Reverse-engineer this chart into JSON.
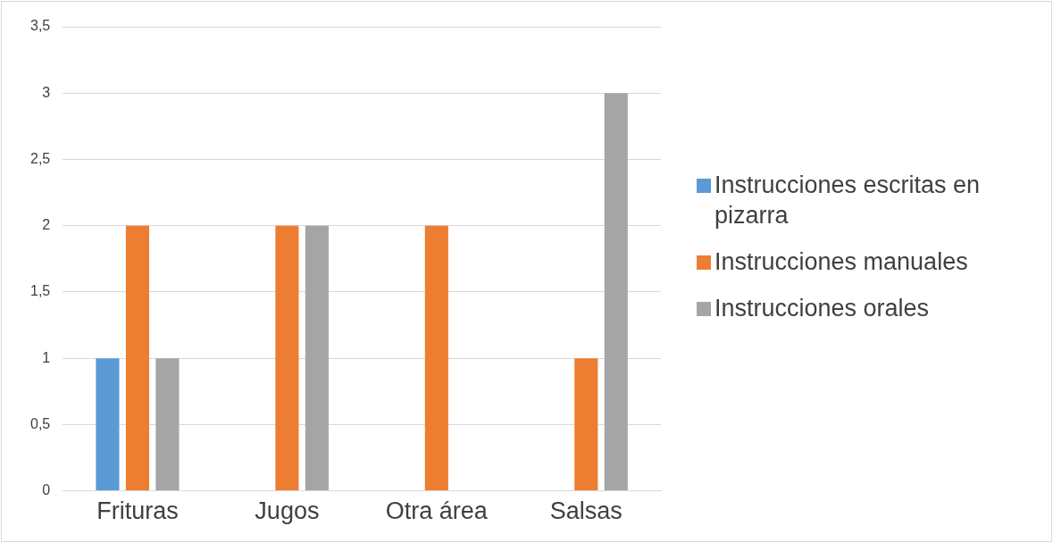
{
  "chart_data": {
    "type": "bar",
    "categories": [
      "Frituras",
      "Jugos",
      "Otra área",
      "Salsas"
    ],
    "series": [
      {
        "name": "Instrucciones escritas en pizarra",
        "color": "#5b9bd5",
        "values": [
          1,
          0,
          0,
          0
        ]
      },
      {
        "name": "Instrucciones manuales",
        "color": "#ed7d31",
        "values": [
          2,
          2,
          2,
          1
        ]
      },
      {
        "name": "Instrucciones orales",
        "color": "#a5a5a5",
        "values": [
          1,
          2,
          0,
          3
        ]
      }
    ],
    "ylim": [
      0,
      3.5
    ],
    "yticks": [
      0,
      {
        "value": 0.5,
        "label": "0,5"
      },
      1,
      {
        "value": 1.5,
        "label": "1,5"
      },
      2,
      {
        "value": 2.5,
        "label": "2,5"
      },
      3,
      {
        "value": 3.5,
        "label": "3,5"
      }
    ],
    "grid": "y",
    "legend": "right"
  }
}
